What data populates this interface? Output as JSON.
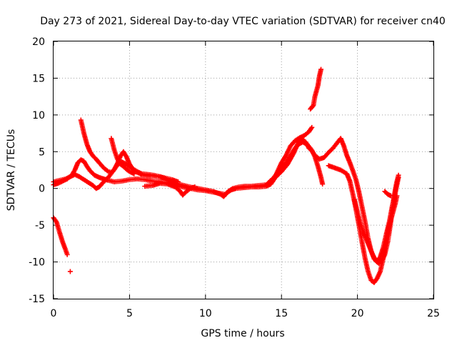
{
  "chart_data": {
    "type": "scatter",
    "title": "Day 273 of 2021, Sidereal Day-to-day VTEC variation (SDTVAR) for receiver cn40",
    "xlabel": "GPS time / hours",
    "ylabel": "SDTVAR / TECUs",
    "xlim": [
      0,
      25
    ],
    "ylim": [
      -15,
      20
    ],
    "xticks": [
      0,
      5,
      10,
      15,
      20,
      25
    ],
    "yticks": [
      -15,
      -10,
      -5,
      0,
      5,
      10,
      15,
      20
    ],
    "grid": true,
    "marker": "plus",
    "series": [
      {
        "name": "SDTVAR",
        "color": "#ff0000",
        "segments": [
          [
            [
              0.0,
              0.5
            ],
            [
              0.3,
              0.7
            ],
            [
              0.6,
              1.0
            ],
            [
              0.9,
              1.3
            ],
            [
              1.2,
              1.8
            ],
            [
              1.4,
              2.5
            ],
            [
              1.6,
              3.5
            ],
            [
              1.8,
              3.9
            ],
            [
              2.0,
              3.7
            ],
            [
              2.2,
              3.0
            ],
            [
              2.4,
              2.4
            ],
            [
              2.7,
              1.8
            ],
            [
              3.0,
              1.5
            ],
            [
              3.3,
              1.3
            ],
            [
              3.6,
              1.1
            ],
            [
              4.0,
              0.9
            ],
            [
              4.5,
              1.0
            ],
            [
              5.0,
              1.2
            ],
            [
              5.5,
              1.3
            ],
            [
              6.0,
              1.2
            ],
            [
              6.5,
              1.0
            ],
            [
              7.0,
              0.9
            ],
            [
              7.5,
              0.7
            ],
            [
              8.0,
              0.4
            ],
            [
              8.5,
              0.2
            ],
            [
              9.0,
              0.0
            ],
            [
              9.5,
              -0.2
            ],
            [
              10.0,
              -0.3
            ],
            [
              10.5,
              -0.5
            ],
            [
              11.0,
              -0.7
            ],
            [
              11.3,
              -0.8
            ],
            [
              11.5,
              -0.4
            ],
            [
              11.8,
              0.0
            ],
            [
              12.2,
              0.2
            ],
            [
              12.6,
              0.3
            ],
            [
              13.0,
              0.3
            ],
            [
              13.5,
              0.4
            ],
            [
              14.0,
              0.5
            ],
            [
              14.5,
              1.5
            ],
            [
              15.0,
              2.8
            ],
            [
              15.3,
              3.5
            ],
            [
              15.6,
              4.5
            ],
            [
              15.9,
              5.5
            ],
            [
              16.1,
              6.0
            ],
            [
              16.4,
              6.3
            ],
            [
              16.7,
              6.0
            ],
            [
              17.0,
              5.2
            ],
            [
              17.2,
              4.3
            ],
            [
              17.4,
              3.0
            ],
            [
              17.6,
              1.5
            ],
            [
              17.7,
              0.6
            ]
          ],
          [
            [
              0.0,
              0.9
            ],
            [
              0.4,
              1.1
            ],
            [
              0.8,
              1.3
            ],
            [
              1.1,
              1.6
            ],
            [
              1.4,
              1.9
            ],
            [
              1.7,
              1.6
            ],
            [
              2.0,
              1.2
            ],
            [
              2.3,
              0.8
            ],
            [
              2.6,
              0.4
            ],
            [
              2.8,
              0.0
            ],
            [
              3.0,
              0.2
            ],
            [
              3.3,
              0.9
            ],
            [
              3.6,
              1.5
            ],
            [
              3.9,
              2.3
            ],
            [
              4.2,
              3.2
            ],
            [
              4.5,
              3.6
            ],
            [
              4.8,
              3.3
            ],
            [
              5.1,
              2.8
            ],
            [
              5.4,
              2.3
            ],
            [
              5.8,
              1.9
            ],
            [
              6.2,
              1.7
            ],
            [
              6.6,
              1.7
            ],
            [
              7.0,
              1.6
            ],
            [
              7.4,
              1.3
            ],
            [
              7.8,
              0.9
            ],
            [
              8.2,
              0.6
            ],
            [
              8.6,
              0.4
            ],
            [
              9.0,
              0.2
            ],
            [
              9.5,
              0.0
            ],
            [
              10.0,
              -0.2
            ],
            [
              10.5,
              -0.4
            ],
            [
              11.0,
              -0.8
            ],
            [
              11.2,
              -1.1
            ],
            [
              11.4,
              -0.6
            ],
            [
              11.7,
              -0.2
            ],
            [
              12.0,
              0.0
            ],
            [
              12.5,
              0.1
            ],
            [
              13.0,
              0.2
            ],
            [
              13.5,
              0.2
            ],
            [
              14.0,
              0.3
            ],
            [
              14.3,
              0.6
            ],
            [
              14.6,
              1.5
            ],
            [
              15.0,
              2.3
            ],
            [
              15.4,
              3.3
            ],
            [
              15.8,
              4.8
            ],
            [
              16.1,
              6.2
            ],
            [
              16.3,
              6.8
            ],
            [
              16.6,
              6.3
            ],
            [
              16.8,
              5.5
            ],
            [
              17.0,
              5.1
            ],
            [
              17.2,
              4.5
            ],
            [
              17.5,
              4.0
            ],
            [
              17.8,
              4.2
            ],
            [
              18.1,
              4.9
            ],
            [
              18.4,
              5.5
            ],
            [
              18.7,
              6.3
            ],
            [
              18.9,
              6.8
            ],
            [
              19.1,
              5.8
            ],
            [
              19.3,
              4.5
            ],
            [
              19.5,
              3.5
            ],
            [
              19.7,
              2.4
            ],
            [
              19.9,
              1.2
            ],
            [
              20.1,
              -0.5
            ],
            [
              20.3,
              -2.5
            ],
            [
              20.5,
              -4.5
            ],
            [
              20.7,
              -6.8
            ],
            [
              20.9,
              -8.5
            ],
            [
              21.1,
              -9.6
            ],
            [
              21.3,
              -10.0
            ],
            [
              21.5,
              -9.3
            ],
            [
              21.7,
              -8.0
            ],
            [
              21.9,
              -6.2
            ],
            [
              22.1,
              -4.5
            ],
            [
              22.3,
              -2.3
            ],
            [
              22.5,
              -0.5
            ],
            [
              22.6,
              0.5
            ],
            [
              22.7,
              1.5
            ]
          ],
          [
            [
              1.8,
              9.3
            ],
            [
              2.0,
              7.5
            ],
            [
              2.2,
              6.0
            ],
            [
              2.4,
              5.0
            ],
            [
              2.6,
              4.4
            ],
            [
              2.8,
              4.0
            ],
            [
              3.0,
              3.5
            ],
            [
              3.3,
              2.8
            ],
            [
              3.6,
              2.3
            ],
            [
              3.8,
              2.2
            ],
            [
              4.0,
              2.6
            ],
            [
              4.2,
              3.4
            ],
            [
              4.4,
              4.4
            ],
            [
              4.6,
              5.0
            ],
            [
              4.8,
              4.3
            ],
            [
              5.0,
              3.3
            ],
            [
              5.2,
              2.7
            ],
            [
              5.5,
              2.3
            ],
            [
              5.8,
              2.0
            ],
            [
              6.2,
              1.9
            ],
            [
              6.6,
              1.8
            ],
            [
              7.0,
              1.6
            ],
            [
              7.4,
              1.4
            ],
            [
              7.8,
              1.2
            ],
            [
              8.2,
              0.9
            ]
          ],
          [
            [
              3.8,
              6.8
            ],
            [
              4.0,
              5.2
            ],
            [
              4.2,
              4.0
            ],
            [
              4.4,
              3.3
            ],
            [
              4.6,
              3.0
            ],
            [
              4.8,
              2.6
            ],
            [
              5.0,
              2.3
            ],
            [
              5.3,
              2.0
            ]
          ],
          [
            [
              6.0,
              0.3
            ],
            [
              6.5,
              0.4
            ],
            [
              7.0,
              0.7
            ],
            [
              7.5,
              0.6
            ],
            [
              8.0,
              0.2
            ],
            [
              8.3,
              -0.3
            ],
            [
              8.5,
              -0.9
            ],
            [
              8.7,
              -0.5
            ],
            [
              9.0,
              0.0
            ],
            [
              9.3,
              0.2
            ]
          ],
          [
            [
              0.0,
              -4.0
            ],
            [
              0.2,
              -4.6
            ],
            [
              0.4,
              -6.0
            ],
            [
              0.6,
              -7.3
            ],
            [
              0.8,
              -8.4
            ],
            [
              0.9,
              -9.0
            ]
          ],
          [
            [
              1.1,
              -11.3
            ]
          ],
          [
            [
              14.6,
              1.7
            ],
            [
              15.0,
              3.5
            ],
            [
              15.3,
              4.5
            ],
            [
              15.6,
              5.8
            ],
            [
              15.9,
              6.5
            ],
            [
              16.2,
              6.9
            ],
            [
              16.5,
              7.2
            ],
            [
              16.8,
              7.7
            ],
            [
              17.0,
              8.3
            ]
          ],
          [
            [
              16.9,
              10.8
            ],
            [
              17.1,
              11.3
            ],
            [
              17.2,
              12.5
            ],
            [
              17.4,
              14.0
            ],
            [
              17.5,
              15.3
            ],
            [
              17.6,
              16.2
            ]
          ],
          [
            [
              18.1,
              3.1
            ],
            [
              18.5,
              2.8
            ],
            [
              18.9,
              2.5
            ],
            [
              19.3,
              2.0
            ],
            [
              19.5,
              1.0
            ],
            [
              19.7,
              -0.8
            ],
            [
              19.9,
              -2.8
            ],
            [
              20.1,
              -5.0
            ],
            [
              20.3,
              -7.3
            ],
            [
              20.5,
              -9.5
            ],
            [
              20.7,
              -11.3
            ],
            [
              20.9,
              -12.5
            ],
            [
              21.1,
              -12.8
            ],
            [
              21.3,
              -12.2
            ],
            [
              21.5,
              -11.3
            ],
            [
              21.7,
              -9.5
            ],
            [
              21.9,
              -7.0
            ],
            [
              22.1,
              -5.0
            ],
            [
              22.3,
              -3.5
            ],
            [
              22.5,
              -2.0
            ],
            [
              22.6,
              -1.0
            ]
          ],
          [
            [
              19.8,
              -1.5
            ],
            [
              20.0,
              -3.2
            ],
            [
              20.2,
              -4.8
            ],
            [
              20.4,
              -6.0
            ],
            [
              20.6,
              -7.0
            ],
            [
              20.8,
              -8.0
            ],
            [
              21.0,
              -9.0
            ],
            [
              21.2,
              -9.8
            ],
            [
              21.4,
              -10.2
            ],
            [
              21.6,
              -9.8
            ],
            [
              21.8,
              -9.0
            ],
            [
              22.0,
              -7.2
            ],
            [
              22.2,
              -4.5
            ],
            [
              22.3,
              -2.5
            ],
            [
              22.5,
              0.0
            ],
            [
              22.6,
              1.0
            ],
            [
              22.7,
              1.8
            ]
          ],
          [
            [
              21.8,
              -0.4
            ],
            [
              22.0,
              -0.8
            ],
            [
              22.2,
              -1.0
            ]
          ]
        ]
      }
    ]
  }
}
